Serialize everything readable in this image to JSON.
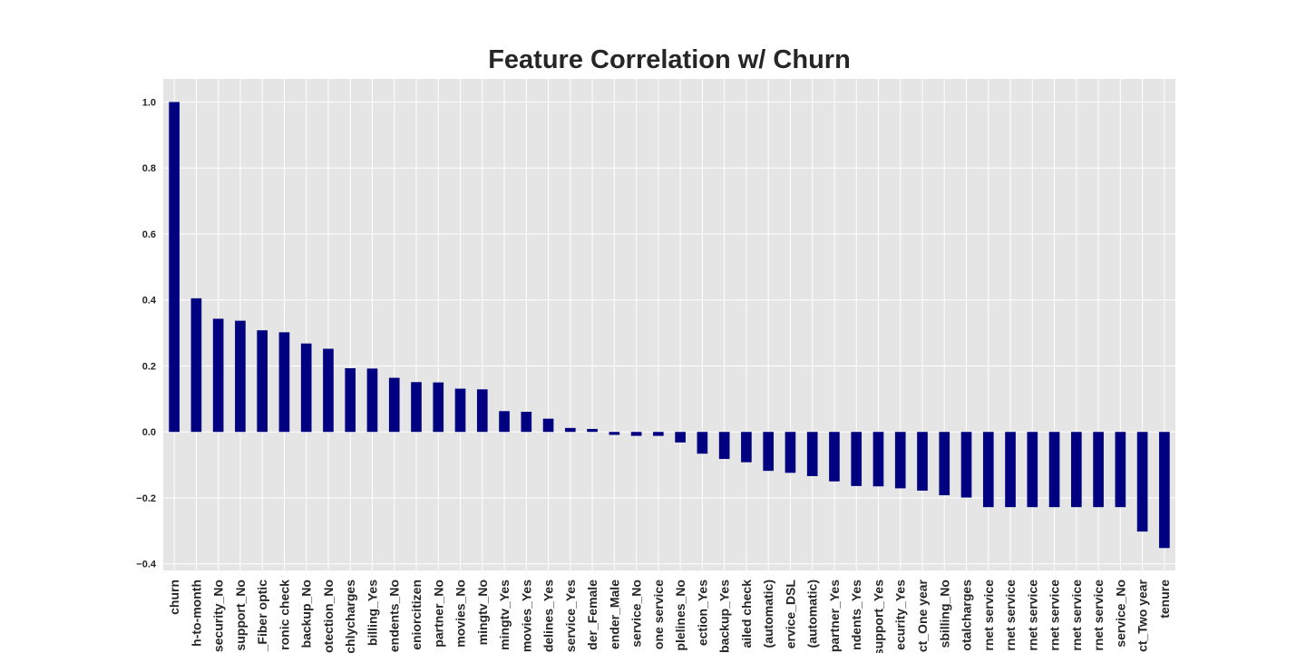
{
  "chart_data": {
    "type": "bar",
    "title": "Feature Correlation w/ Churn",
    "xlabel": "",
    "ylabel": "",
    "ylim": [
      -0.42,
      1.07
    ],
    "yticks": [
      -0.4,
      -0.2,
      0.0,
      0.2,
      0.4,
      0.6,
      0.8,
      1.0
    ],
    "ytick_labels": [
      "−0.4",
      "−0.2",
      "0.0",
      "0.2",
      "0.4",
      "0.6",
      "0.8",
      "1.0"
    ],
    "grid": true,
    "bar_color": "#000080",
    "background_color": "#e5e5e5",
    "categories": [
      "churn",
      "h-to-month",
      "security_No",
      "support_No",
      "_Fiber optic",
      "ronic check",
      "backup_No",
      "otection_No",
      "chlycharges",
      "billing_Yes",
      "endents_No",
      "eniorcitizen",
      "partner_No",
      "movies_No",
      "mingtv_No",
      "mingtv_Yes",
      "movies_Yes",
      "delines_Yes",
      "service_Yes",
      "der_Female",
      "ender_Male",
      "service_No",
      "one service",
      "plelines_No",
      "ection_Yes",
      "backup_Yes",
      "ailed check",
      "(automatic)",
      "ervice_DSL",
      "(automatic)",
      "partner_Yes",
      "ndents_Yes",
      "support_Yes",
      "ecurity_Yes",
      "ct_One year",
      "sbilling_No",
      "otalcharges",
      "rnet service",
      "rnet service",
      "rnet service",
      "rnet service",
      "rnet service",
      "rnet service",
      "service_No",
      "ct_Two year",
      "tenure"
    ],
    "values": [
      1.0,
      0.405,
      0.343,
      0.337,
      0.308,
      0.302,
      0.268,
      0.252,
      0.193,
      0.192,
      0.164,
      0.151,
      0.15,
      0.131,
      0.129,
      0.063,
      0.061,
      0.04,
      0.012,
      0.009,
      -0.009,
      -0.012,
      -0.012,
      -0.032,
      -0.066,
      -0.082,
      -0.092,
      -0.118,
      -0.124,
      -0.134,
      -0.15,
      -0.164,
      -0.165,
      -0.171,
      -0.178,
      -0.192,
      -0.199,
      -0.228,
      -0.228,
      -0.228,
      -0.228,
      -0.228,
      -0.228,
      -0.228,
      -0.302,
      -0.352
    ]
  }
}
